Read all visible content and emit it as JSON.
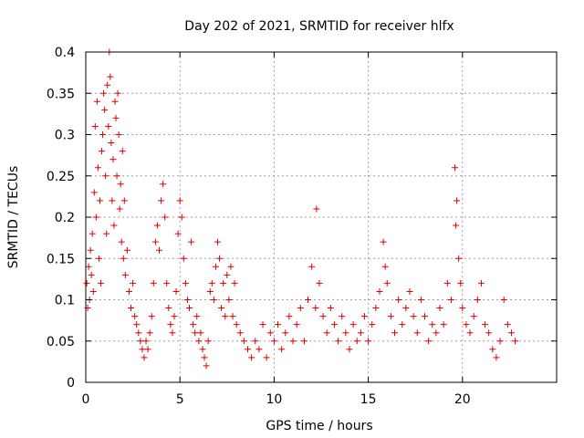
{
  "chart_data": {
    "type": "scatter",
    "title": "Day 202 of 2021, SRMTID for receiver hlfx",
    "xlabel": "GPS time / hours",
    "ylabel": "SRMTID / TECUs",
    "xlim": [
      0,
      25
    ],
    "ylim": [
      0,
      0.4
    ],
    "x_ticks": [
      0,
      5,
      10,
      15,
      20
    ],
    "y_ticks": [
      0,
      0.05,
      0.1,
      0.15,
      0.2,
      0.25,
      0.3,
      0.35,
      0.4
    ],
    "x_tick_labels": [
      "0",
      "5",
      "10",
      "15",
      "20"
    ],
    "y_tick_labels": [
      "0",
      "0.05",
      "0.1",
      "0.15",
      "0.2",
      "0.25",
      "0.3",
      "0.35",
      "0.4"
    ],
    "grid": true,
    "marker": "+",
    "color": "#e00000",
    "series": [
      {
        "points": [
          [
            0.05,
            0.12
          ],
          [
            0.1,
            0.09
          ],
          [
            0.15,
            0.14
          ],
          [
            0.2,
            0.1
          ],
          [
            0.25,
            0.16
          ],
          [
            0.3,
            0.13
          ],
          [
            0.35,
            0.18
          ],
          [
            0.4,
            0.11
          ],
          [
            0.45,
            0.23
          ],
          [
            0.5,
            0.31
          ],
          [
            0.55,
            0.2
          ],
          [
            0.6,
            0.34
          ],
          [
            0.65,
            0.26
          ],
          [
            0.7,
            0.15
          ],
          [
            0.75,
            0.22
          ],
          [
            0.8,
            0.12
          ],
          [
            0.85,
            0.28
          ],
          [
            0.9,
            0.3
          ],
          [
            0.95,
            0.35
          ],
          [
            1.0,
            0.33
          ],
          [
            1.05,
            0.25
          ],
          [
            1.1,
            0.18
          ],
          [
            1.15,
            0.36
          ],
          [
            1.2,
            0.31
          ],
          [
            1.25,
            0.4
          ],
          [
            1.3,
            0.37
          ],
          [
            1.35,
            0.29
          ],
          [
            1.4,
            0.22
          ],
          [
            1.45,
            0.27
          ],
          [
            1.5,
            0.19
          ],
          [
            1.55,
            0.34
          ],
          [
            1.6,
            0.32
          ],
          [
            1.65,
            0.25
          ],
          [
            1.7,
            0.35
          ],
          [
            1.75,
            0.3
          ],
          [
            1.8,
            0.21
          ],
          [
            1.85,
            0.24
          ],
          [
            1.9,
            0.17
          ],
          [
            1.95,
            0.28
          ],
          [
            2.0,
            0.15
          ],
          [
            2.05,
            0.22
          ],
          [
            2.1,
            0.13
          ],
          [
            2.2,
            0.16
          ],
          [
            2.3,
            0.11
          ],
          [
            2.4,
            0.09
          ],
          [
            2.5,
            0.12
          ],
          [
            2.6,
            0.08
          ],
          [
            2.7,
            0.07
          ],
          [
            2.8,
            0.06
          ],
          [
            2.9,
            0.05
          ],
          [
            3.0,
            0.04
          ],
          [
            3.1,
            0.03
          ],
          [
            3.2,
            0.05
          ],
          [
            3.3,
            0.04
          ],
          [
            3.4,
            0.06
          ],
          [
            3.5,
            0.08
          ],
          [
            3.6,
            0.12
          ],
          [
            3.7,
            0.17
          ],
          [
            3.8,
            0.19
          ],
          [
            3.9,
            0.16
          ],
          [
            4.0,
            0.22
          ],
          [
            4.1,
            0.24
          ],
          [
            4.2,
            0.2
          ],
          [
            4.3,
            0.12
          ],
          [
            4.4,
            0.09
          ],
          [
            4.5,
            0.07
          ],
          [
            4.6,
            0.06
          ],
          [
            4.7,
            0.08
          ],
          [
            4.8,
            0.11
          ],
          [
            4.9,
            0.18
          ],
          [
            5.0,
            0.22
          ],
          [
            5.1,
            0.2
          ],
          [
            5.2,
            0.15
          ],
          [
            5.3,
            0.12
          ],
          [
            5.4,
            0.1
          ],
          [
            5.5,
            0.09
          ],
          [
            5.6,
            0.17
          ],
          [
            5.7,
            0.07
          ],
          [
            5.8,
            0.06
          ],
          [
            5.9,
            0.08
          ],
          [
            6.0,
            0.05
          ],
          [
            6.1,
            0.06
          ],
          [
            6.2,
            0.04
          ],
          [
            6.3,
            0.03
          ],
          [
            6.4,
            0.02
          ],
          [
            6.5,
            0.05
          ],
          [
            6.6,
            0.11
          ],
          [
            6.7,
            0.12
          ],
          [
            6.8,
            0.1
          ],
          [
            6.9,
            0.14
          ],
          [
            7.0,
            0.17
          ],
          [
            7.1,
            0.15
          ],
          [
            7.2,
            0.09
          ],
          [
            7.3,
            0.12
          ],
          [
            7.4,
            0.08
          ],
          [
            7.5,
            0.13
          ],
          [
            7.6,
            0.1
          ],
          [
            7.7,
            0.14
          ],
          [
            7.8,
            0.08
          ],
          [
            7.9,
            0.12
          ],
          [
            8.0,
            0.07
          ],
          [
            8.2,
            0.06
          ],
          [
            8.4,
            0.05
          ],
          [
            8.6,
            0.04
          ],
          [
            8.8,
            0.03
          ],
          [
            9.0,
            0.05
          ],
          [
            9.2,
            0.04
          ],
          [
            9.4,
            0.07
          ],
          [
            9.6,
            0.03
          ],
          [
            9.8,
            0.06
          ],
          [
            10.0,
            0.05
          ],
          [
            10.2,
            0.07
          ],
          [
            10.4,
            0.04
          ],
          [
            10.6,
            0.06
          ],
          [
            10.8,
            0.08
          ],
          [
            11.0,
            0.05
          ],
          [
            11.2,
            0.07
          ],
          [
            11.4,
            0.09
          ],
          [
            11.6,
            0.05
          ],
          [
            11.8,
            0.1
          ],
          [
            12.0,
            0.14
          ],
          [
            12.2,
            0.09
          ],
          [
            12.25,
            0.21
          ],
          [
            12.4,
            0.12
          ],
          [
            12.6,
            0.08
          ],
          [
            12.8,
            0.06
          ],
          [
            13.0,
            0.09
          ],
          [
            13.2,
            0.07
          ],
          [
            13.4,
            0.05
          ],
          [
            13.6,
            0.08
          ],
          [
            13.8,
            0.06
          ],
          [
            14.0,
            0.04
          ],
          [
            14.2,
            0.07
          ],
          [
            14.4,
            0.05
          ],
          [
            14.6,
            0.06
          ],
          [
            14.8,
            0.08
          ],
          [
            15.0,
            0.05
          ],
          [
            15.2,
            0.07
          ],
          [
            15.4,
            0.09
          ],
          [
            15.6,
            0.11
          ],
          [
            15.8,
            0.17
          ],
          [
            15.9,
            0.14
          ],
          [
            16.0,
            0.12
          ],
          [
            16.2,
            0.08
          ],
          [
            16.4,
            0.06
          ],
          [
            16.6,
            0.1
          ],
          [
            16.8,
            0.07
          ],
          [
            17.0,
            0.09
          ],
          [
            17.2,
            0.11
          ],
          [
            17.4,
            0.08
          ],
          [
            17.6,
            0.06
          ],
          [
            17.8,
            0.1
          ],
          [
            18.0,
            0.08
          ],
          [
            18.2,
            0.05
          ],
          [
            18.4,
            0.07
          ],
          [
            18.6,
            0.06
          ],
          [
            18.8,
            0.09
          ],
          [
            19.0,
            0.07
          ],
          [
            19.2,
            0.12
          ],
          [
            19.4,
            0.1
          ],
          [
            19.6,
            0.26
          ],
          [
            19.65,
            0.19
          ],
          [
            19.7,
            0.22
          ],
          [
            19.8,
            0.15
          ],
          [
            19.9,
            0.12
          ],
          [
            20.0,
            0.09
          ],
          [
            20.2,
            0.07
          ],
          [
            20.4,
            0.06
          ],
          [
            20.6,
            0.08
          ],
          [
            20.8,
            0.1
          ],
          [
            21.0,
            0.12
          ],
          [
            21.2,
            0.07
          ],
          [
            21.4,
            0.06
          ],
          [
            21.6,
            0.04
          ],
          [
            21.8,
            0.03
          ],
          [
            22.0,
            0.05
          ],
          [
            22.2,
            0.1
          ],
          [
            22.4,
            0.07
          ],
          [
            22.6,
            0.06
          ],
          [
            22.8,
            0.05
          ]
        ]
      }
    ]
  }
}
